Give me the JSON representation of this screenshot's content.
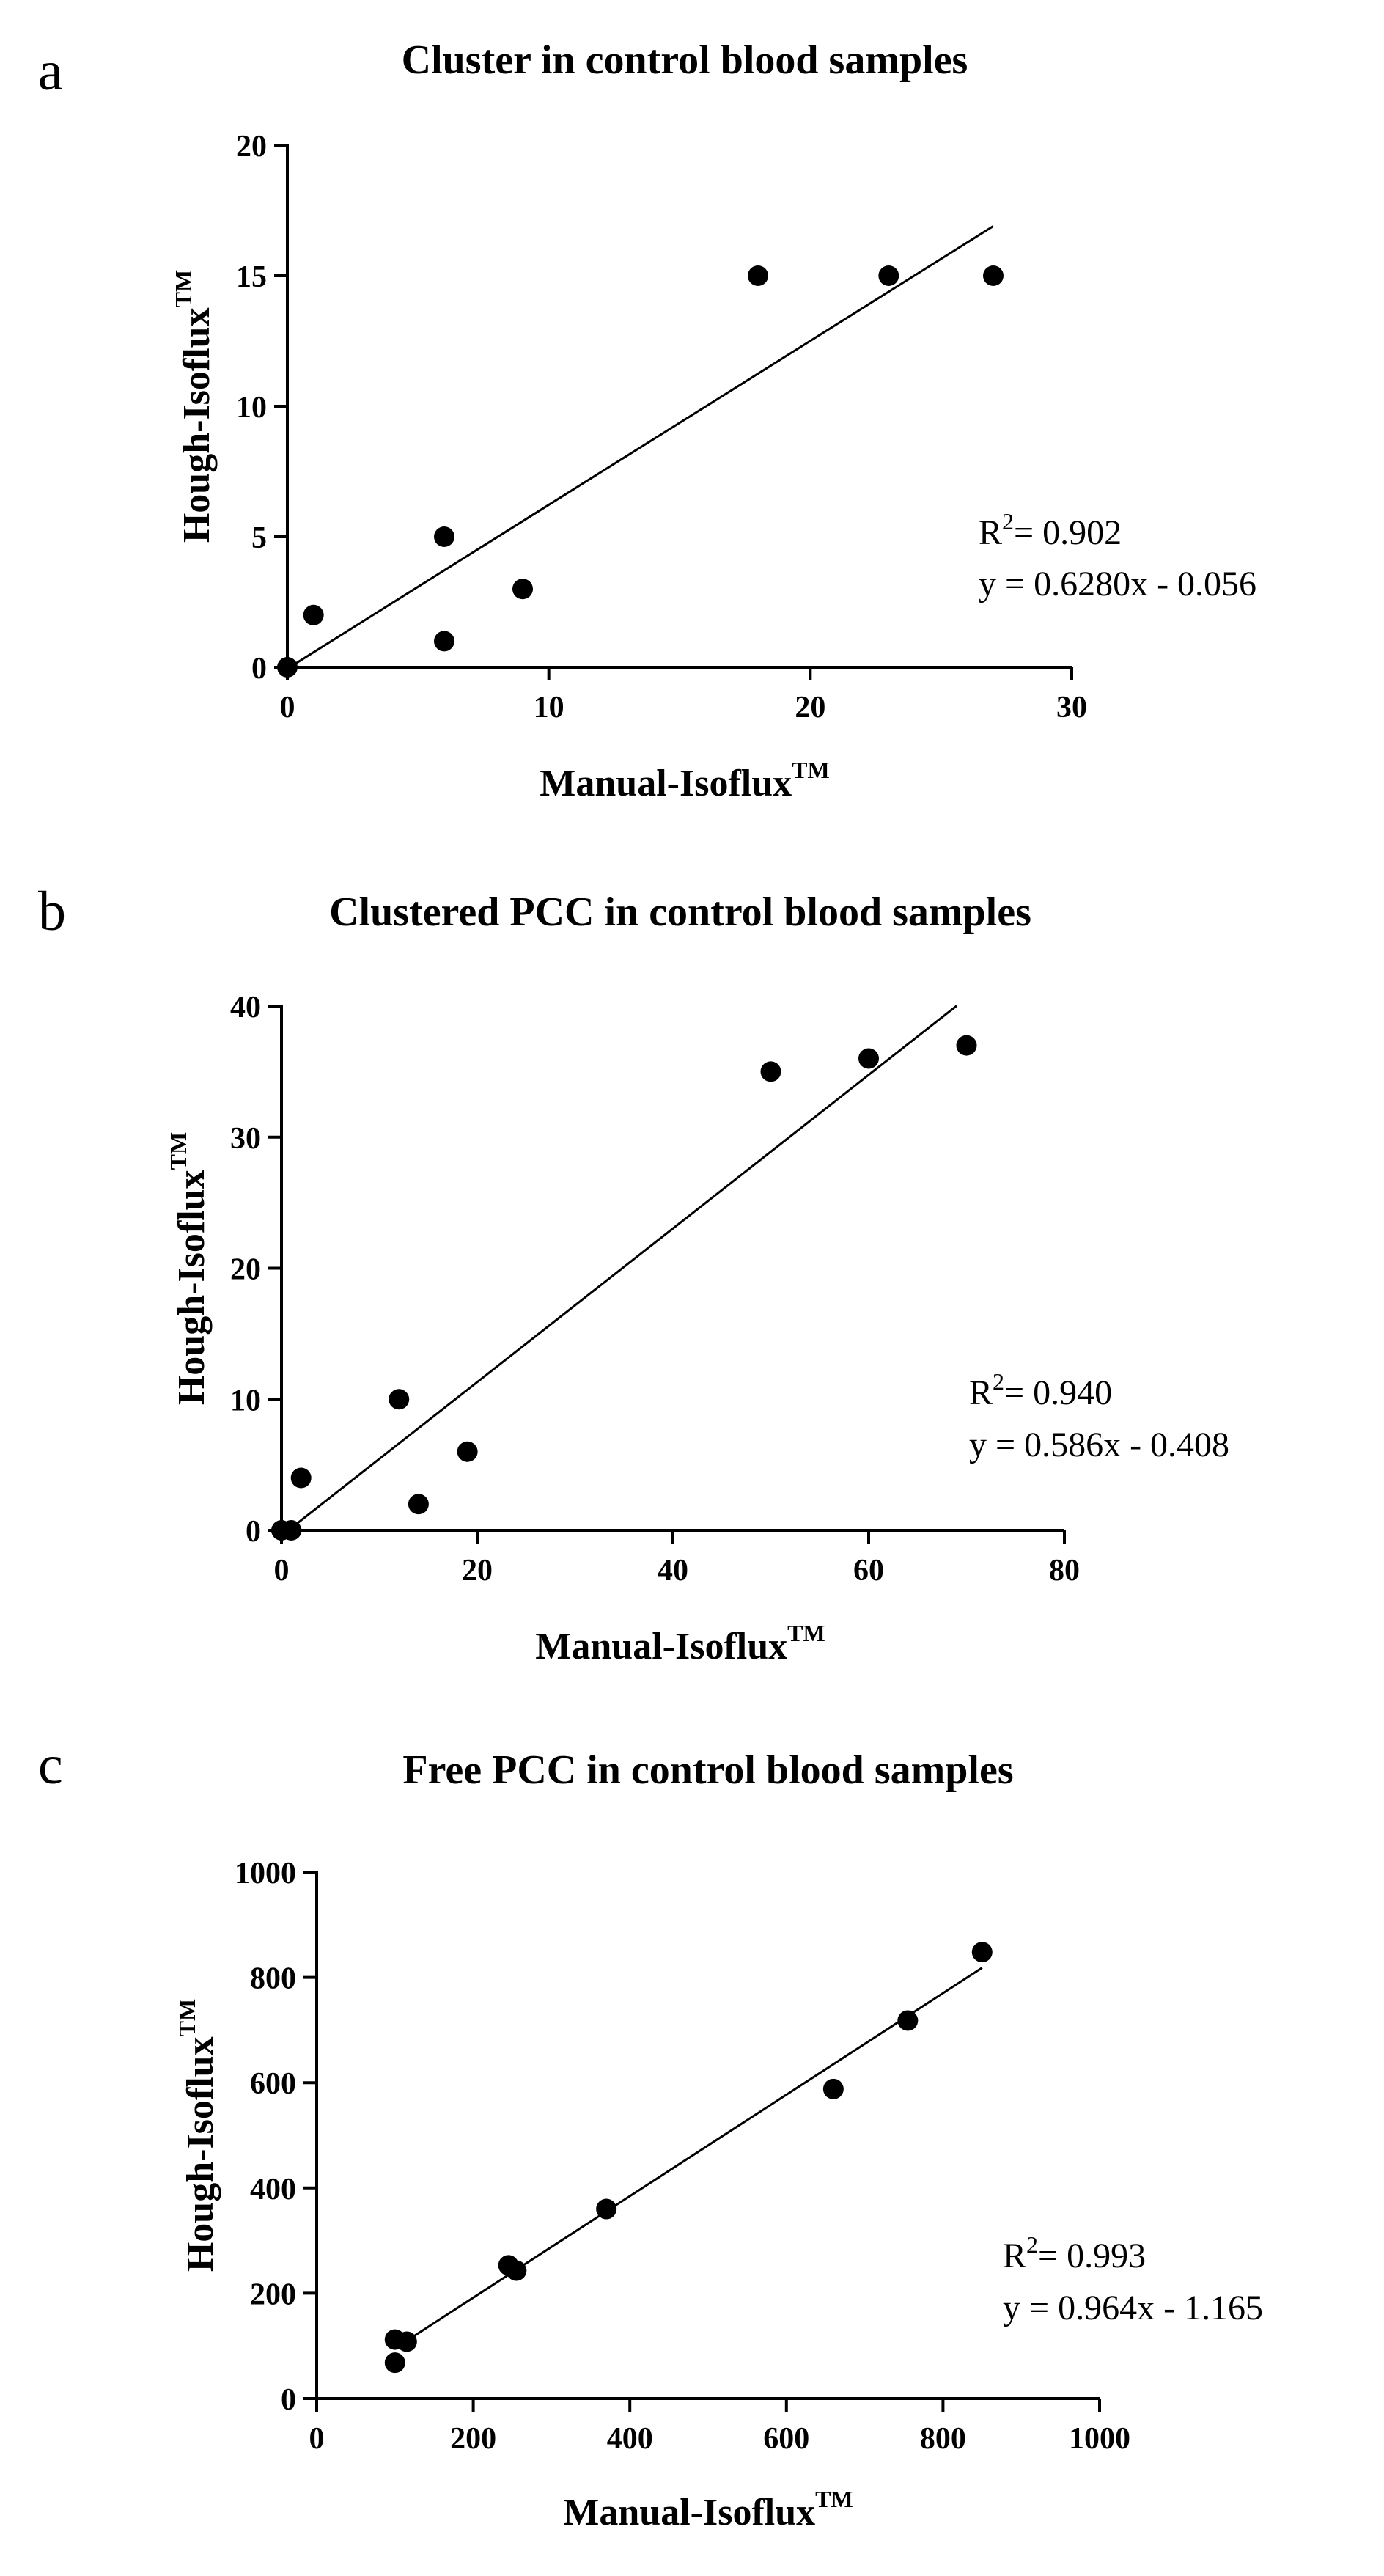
{
  "chart_data": [
    {
      "type": "scatter",
      "panel": "a",
      "title": "Cluster in control blood samples",
      "xlabel": "Manual-Isoflux",
      "ylabel": "Hough-Isoflux",
      "label_superscript": "TM",
      "xlim": [
        0,
        30
      ],
      "ylim": [
        0,
        20
      ],
      "xticks": [
        0,
        10,
        20,
        30
      ],
      "yticks": [
        0,
        5,
        10,
        15,
        20
      ],
      "points": [
        {
          "x": 0,
          "y": 0
        },
        {
          "x": 1,
          "y": 2
        },
        {
          "x": 6,
          "y": 5
        },
        {
          "x": 6,
          "y": 1
        },
        {
          "x": 9,
          "y": 3
        },
        {
          "x": 18,
          "y": 15
        },
        {
          "x": 23,
          "y": 15
        },
        {
          "x": 27,
          "y": 15
        }
      ],
      "fit": {
        "slope": 0.628,
        "intercept": -0.056,
        "x_range": [
          0,
          27
        ]
      },
      "r2_prefix": "R",
      "r2_sup": "2",
      "r2_value": "= 0.902",
      "equation": "y = 0.6280x - 0.056"
    },
    {
      "type": "scatter",
      "panel": "b",
      "title": "Clustered PCC in control blood samples",
      "xlabel": "Manual-Isoflux",
      "ylabel": "Hough-Isoflux",
      "label_superscript": "TM",
      "xlim": [
        0,
        80
      ],
      "ylim": [
        0,
        40
      ],
      "xticks": [
        0,
        20,
        40,
        60,
        80
      ],
      "yticks": [
        0,
        10,
        20,
        30,
        40
      ],
      "points": [
        {
          "x": 0,
          "y": 0
        },
        {
          "x": 1,
          "y": 0
        },
        {
          "x": 2,
          "y": 4
        },
        {
          "x": 12,
          "y": 10
        },
        {
          "x": 14,
          "y": 2
        },
        {
          "x": 19,
          "y": 6
        },
        {
          "x": 50,
          "y": 35
        },
        {
          "x": 60,
          "y": 36
        },
        {
          "x": 70,
          "y": 37
        }
      ],
      "fit": {
        "slope": 0.586,
        "intercept": -0.408,
        "x_range": [
          0,
          69
        ]
      },
      "r2_prefix": "R",
      "r2_sup": "2",
      "r2_value": "= 0.940",
      "equation": "y = 0.586x - 0.408"
    },
    {
      "type": "scatter",
      "panel": "c",
      "title": "Free PCC in control blood samples",
      "xlabel": "Manual-Isoflux",
      "ylabel": "Hough-Isoflux",
      "label_superscript": "TM",
      "xlim": [
        0,
        1000
      ],
      "ylim": [
        0,
        1000
      ],
      "xticks": [
        0,
        200,
        400,
        600,
        800,
        1000
      ],
      "yticks": [
        0,
        200,
        400,
        600,
        800,
        1000
      ],
      "points": [
        {
          "x": 100,
          "y": 68
        },
        {
          "x": 100,
          "y": 112
        },
        {
          "x": 115,
          "y": 108
        },
        {
          "x": 245,
          "y": 253
        },
        {
          "x": 255,
          "y": 243
        },
        {
          "x": 370,
          "y": 360
        },
        {
          "x": 660,
          "y": 588
        },
        {
          "x": 755,
          "y": 718
        },
        {
          "x": 850,
          "y": 848
        }
      ],
      "fit": {
        "slope": 0.964,
        "intercept": -1.165,
        "x_range": [
          100,
          850
        ]
      },
      "r2_prefix": "R",
      "r2_sup": "2",
      "r2_value": "= 0.993",
      "equation": "y = 0.964x - 1.165"
    }
  ]
}
